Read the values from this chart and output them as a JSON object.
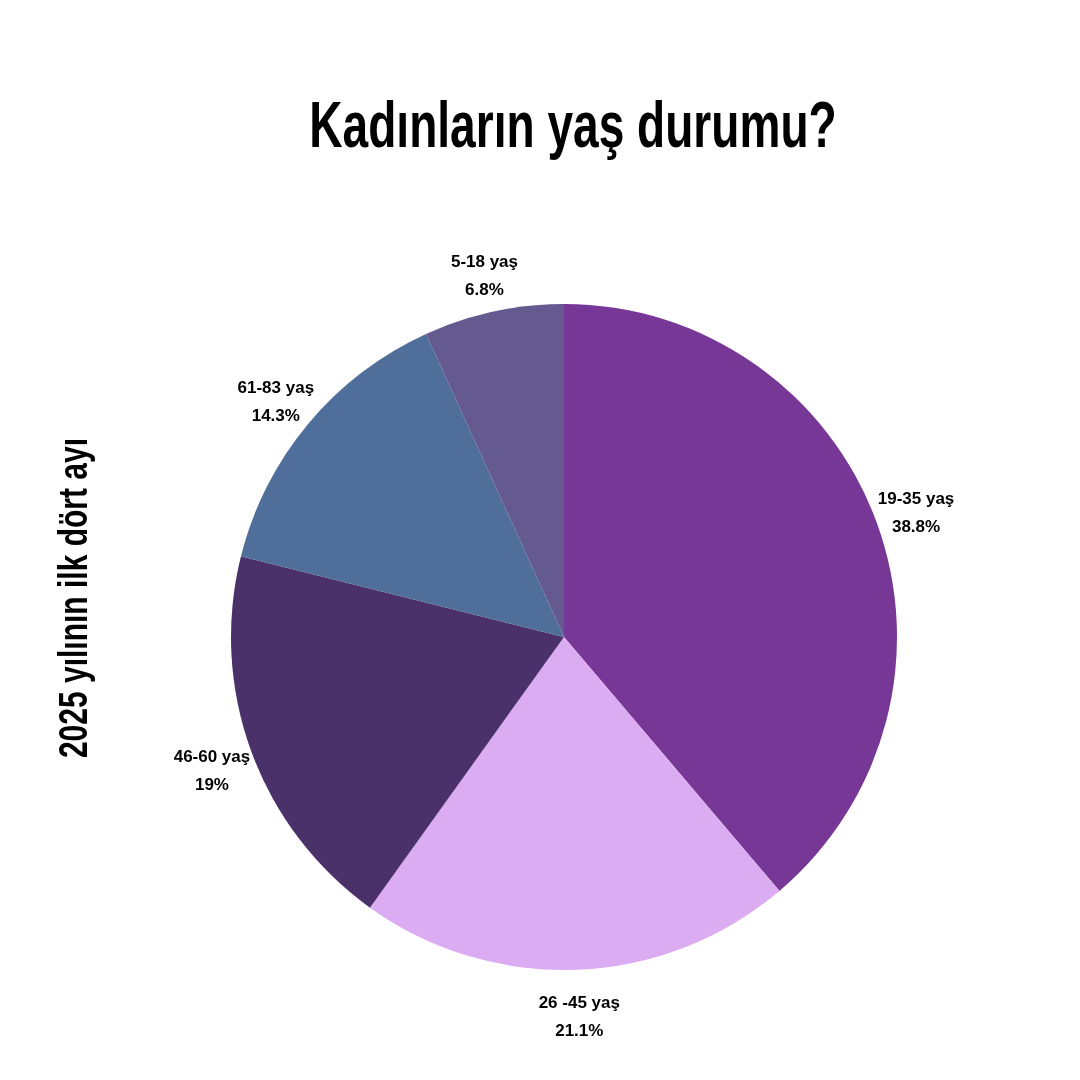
{
  "chart_data": {
    "type": "pie",
    "title": "Kadınların yaş durumu?",
    "subtitle": "2025 yılının ilk dört ayı",
    "categories": [
      "19-35 yaş",
      "26 -45 yaş",
      "46-60 yaş",
      "61-83 yaş",
      "5-18 yaş"
    ],
    "values": [
      38.8,
      21.1,
      19,
      14.3,
      6.8
    ],
    "value_labels": [
      "38.8%",
      "21.1%",
      "19%",
      "14.3%",
      "6.8%"
    ],
    "colors": [
      "#773796",
      "#dcacf2",
      "#4a3169",
      "#4f6e99",
      "#645a8f"
    ]
  }
}
